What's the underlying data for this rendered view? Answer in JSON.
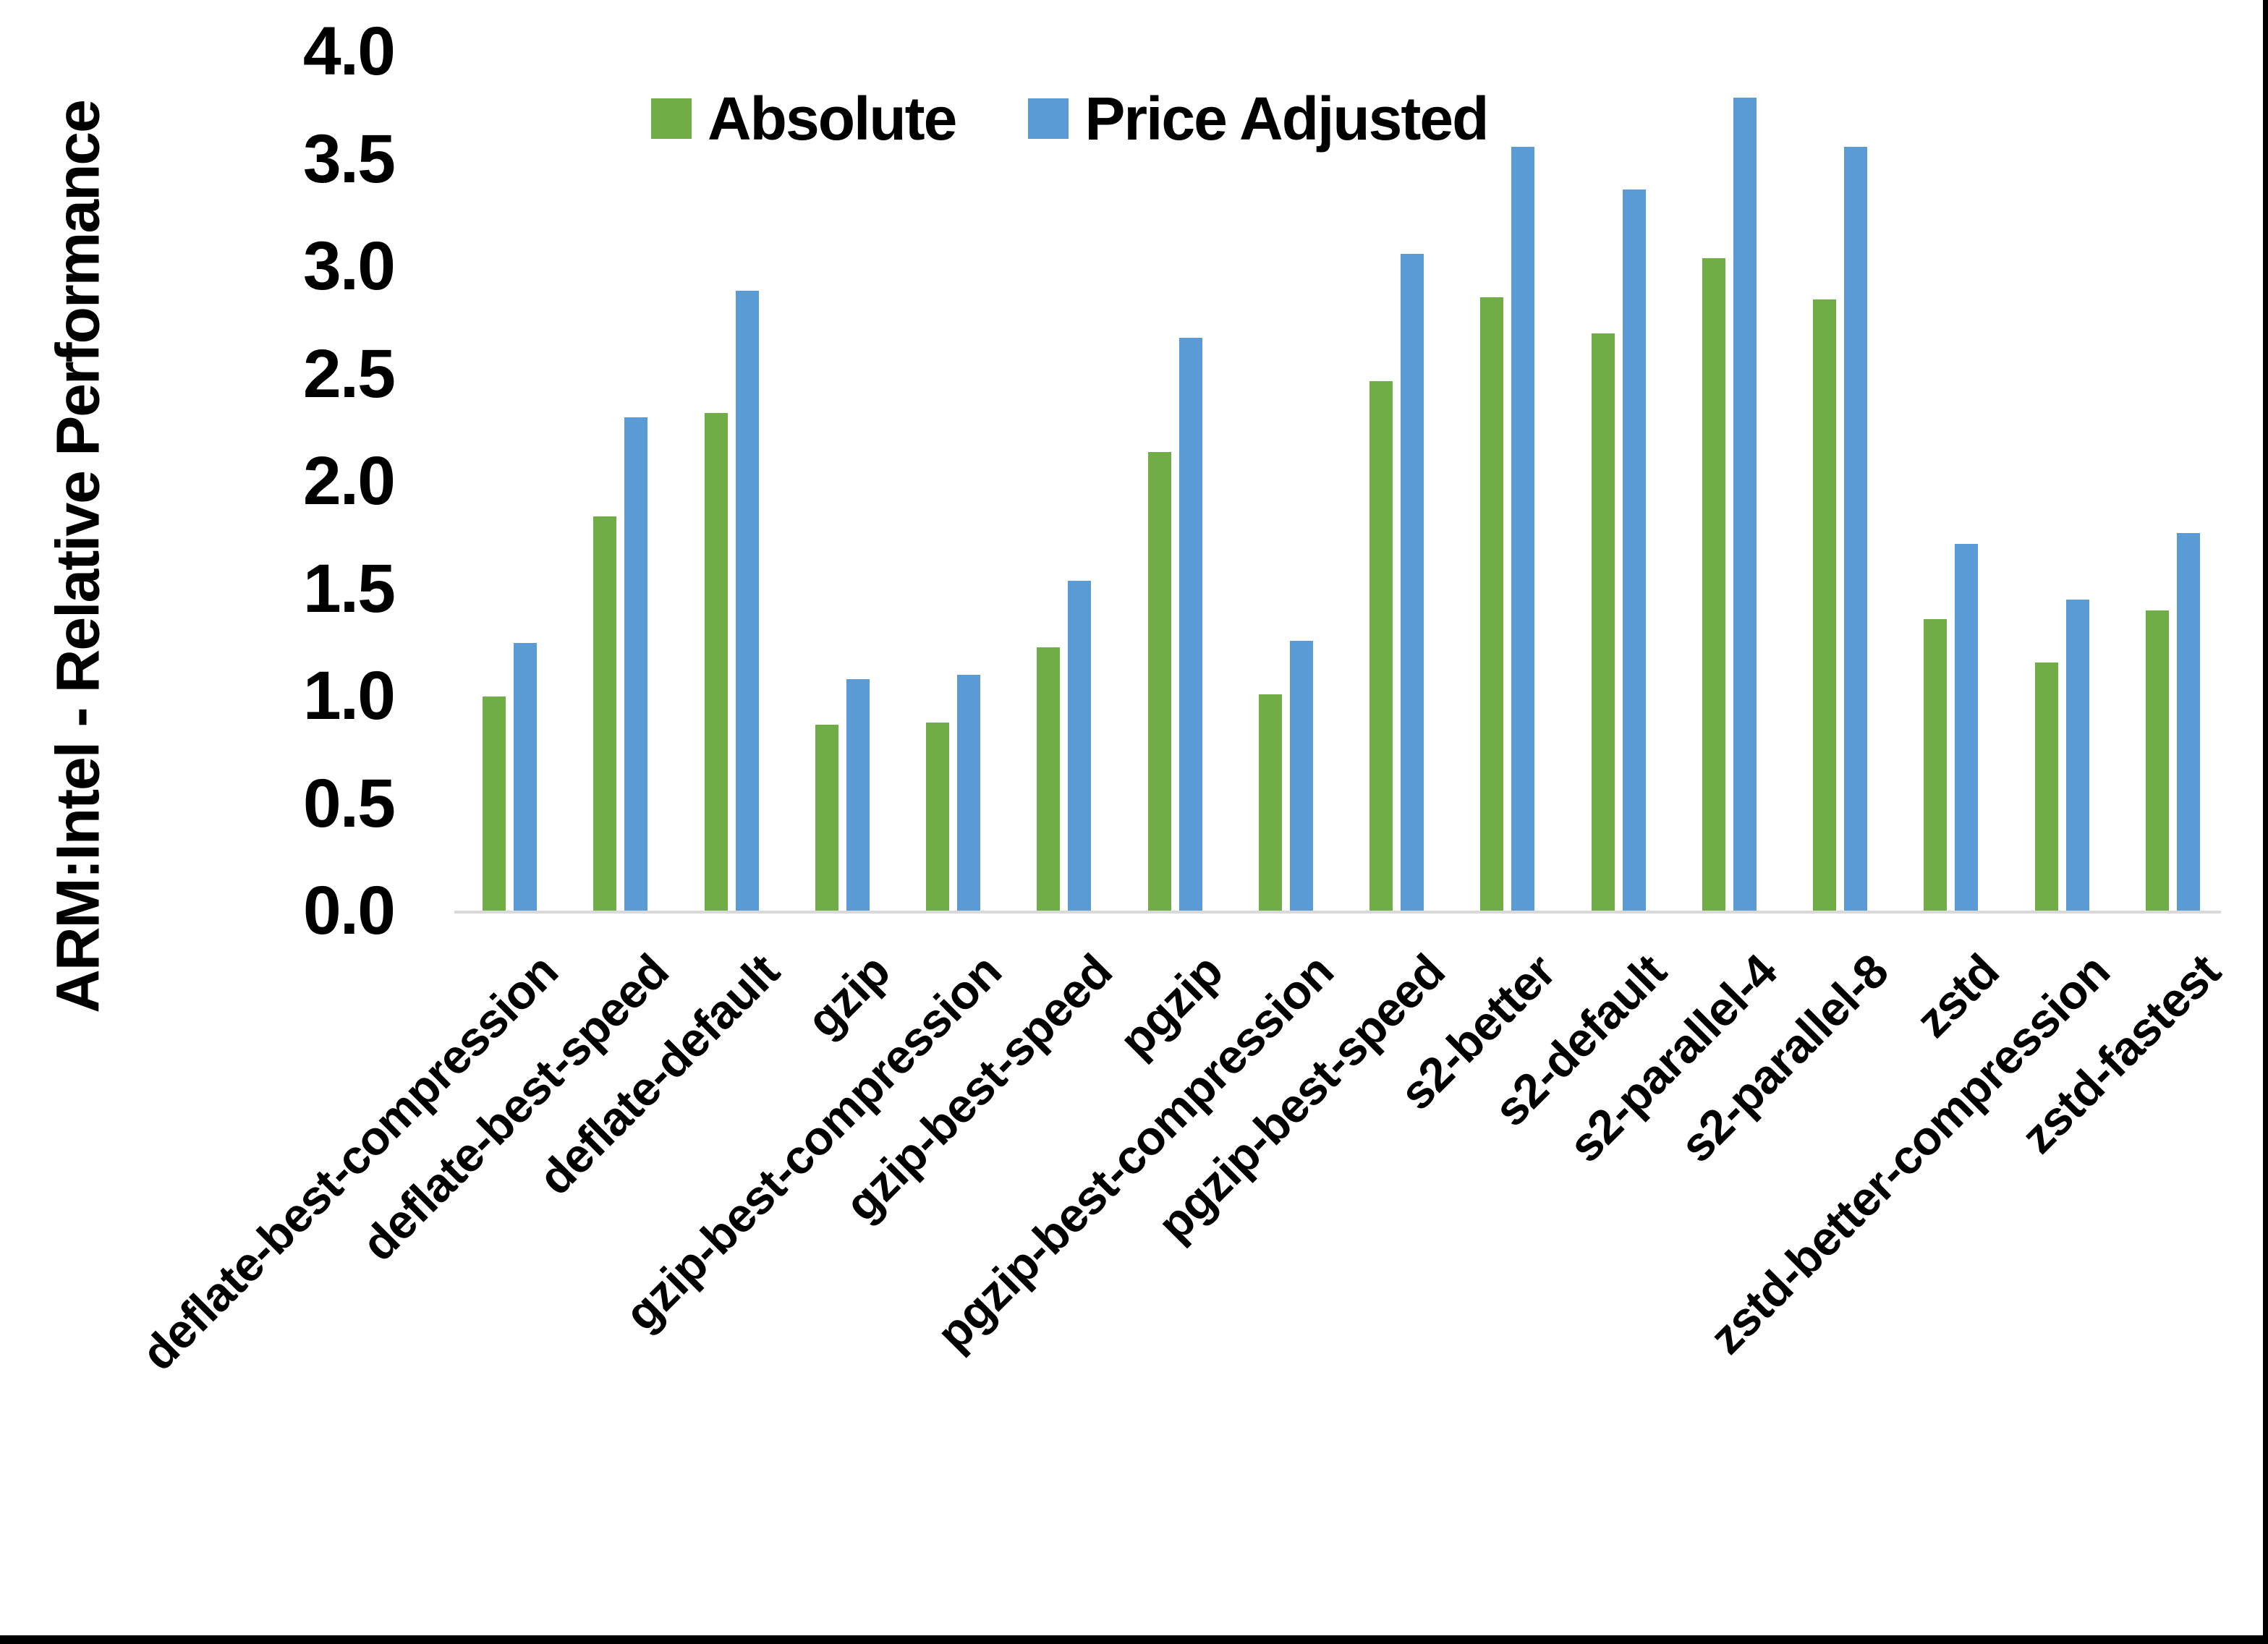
{
  "page": {
    "background": "#ffffff",
    "border_right_color": "#000000",
    "border_bottom_color": "#000000"
  },
  "chart_data": {
    "type": "bar",
    "title": "",
    "xlabel": "",
    "ylabel": "ARM:Intel - Relative Performance",
    "ylim": [
      0.0,
      4.0
    ],
    "ytick_labels": [
      "4.0",
      "3.5",
      "3.0",
      "2.5",
      "2.0",
      "1.5",
      "1.0",
      "0.5",
      "0.0"
    ],
    "grid": false,
    "legend_position": "top-center",
    "axis_line_color": "#d9d9d9",
    "categories": [
      "deflate-best-compression",
      "deflate-best-speed",
      "deflate-default",
      "gzip",
      "gzip-best-compression",
      "gzip-best-speed",
      "pgzip",
      "pgzip-best-compression",
      "pgzip-best-speed",
      "s2-better",
      "s2-default",
      "s2-parallel-4",
      "s2-parallel-8",
      "zstd",
      "zstd-better-compression",
      "zstd-fastest"
    ],
    "series": [
      {
        "name": "Absolute",
        "color": "#70AD47",
        "values": [
          1.0,
          1.84,
          2.32,
          0.87,
          0.88,
          1.23,
          2.14,
          1.01,
          2.47,
          2.86,
          2.69,
          3.04,
          2.85,
          1.36,
          1.16,
          1.4
        ]
      },
      {
        "name": "Price Adjusted",
        "color": "#5B9BD5",
        "values": [
          1.25,
          2.3,
          2.89,
          1.08,
          1.1,
          1.54,
          2.67,
          1.26,
          3.06,
          3.56,
          3.36,
          3.79,
          3.56,
          1.71,
          1.45,
          1.76
        ]
      }
    ]
  }
}
